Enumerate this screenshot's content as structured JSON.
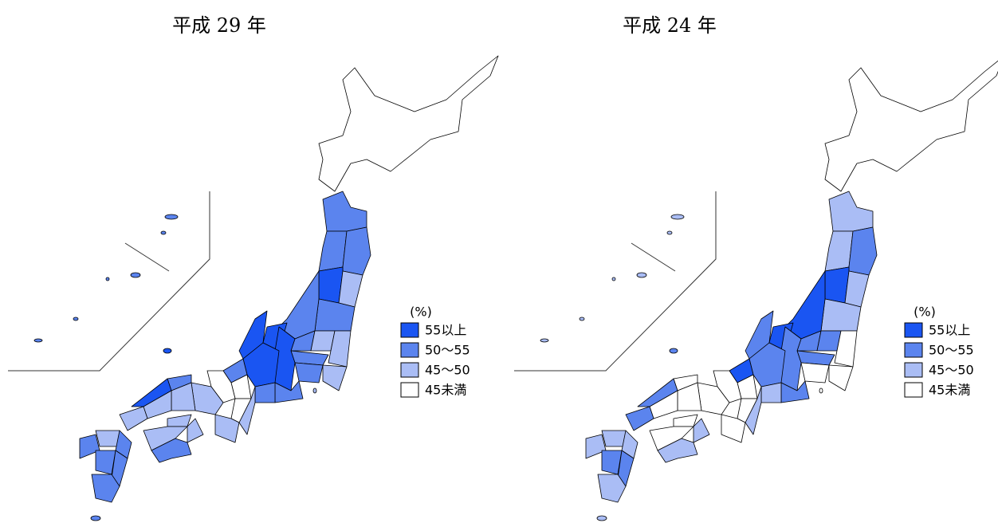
{
  "maps": [
    {
      "title": "平成 29 年"
    },
    {
      "title": "平成 24 年"
    }
  ],
  "legend": {
    "unit": "(%)",
    "items": [
      {
        "label": "55以上",
        "color": "#1a55f2"
      },
      {
        "label": "50～55",
        "color": "#5b84ee"
      },
      {
        "label": "45～50",
        "color": "#aabdf5"
      },
      {
        "label": "45未満",
        "color": "#ffffff"
      }
    ]
  }
}
